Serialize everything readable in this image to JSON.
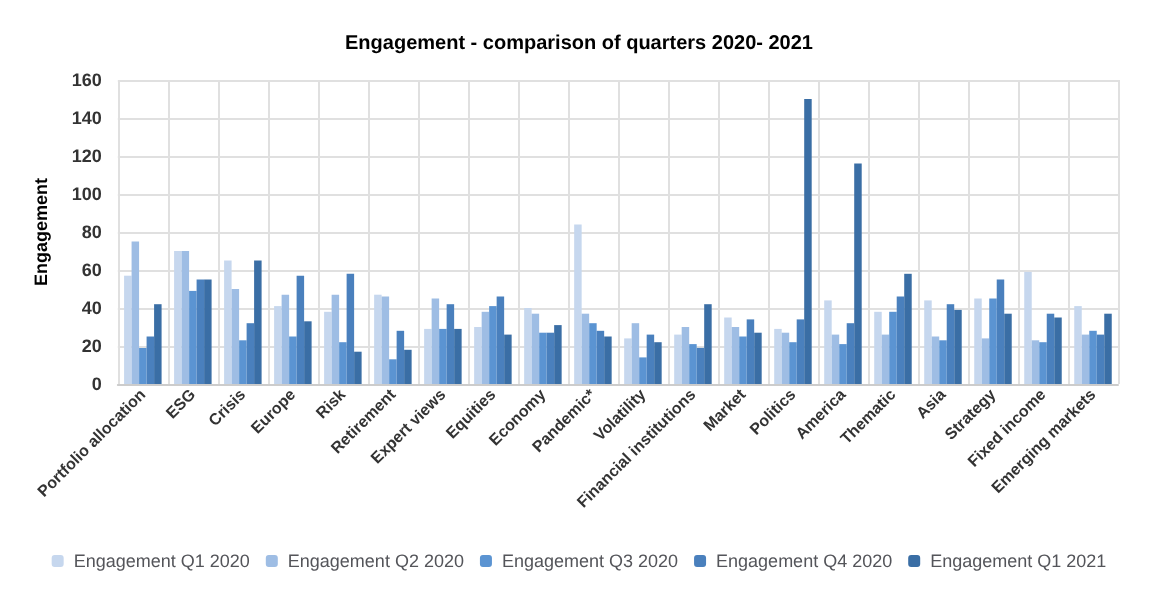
{
  "chart_data": {
    "type": "bar",
    "title": "Engagement - comparison of quarters 2020- 2021",
    "ylabel": "Engagement",
    "categories": [
      "Portfolio allocation",
      "ESG",
      "Crisis",
      "Europe",
      "Risk",
      "Retirement",
      "Expert views",
      "Equities",
      "Economy",
      "Pandemic*",
      "Volatility",
      "Financial institutions",
      "Market",
      "Politics",
      "America",
      "Thematic",
      "Asia",
      "Strategy",
      "Fixed income",
      "Emerging markets"
    ],
    "series": [
      {
        "name": "Engagement Q1 2020",
        "color": "#c6d7ee",
        "values": [
          57,
          70,
          65,
          41,
          38,
          47,
          29,
          30,
          40,
          84,
          24,
          26,
          35,
          29,
          44,
          38,
          44,
          45,
          59,
          41
        ]
      },
      {
        "name": "Engagement Q2 2020",
        "color": "#9ebde4",
        "values": [
          75,
          70,
          50,
          47,
          47,
          46,
          45,
          38,
          37,
          37,
          32,
          30,
          30,
          27,
          26,
          26,
          25,
          24,
          23,
          26
        ]
      },
      {
        "name": "Engagement Q3 2020",
        "color": "#5b94d2",
        "values": [
          19,
          49,
          23,
          25,
          22,
          13,
          29,
          41,
          27,
          32,
          14,
          21,
          25,
          22,
          21,
          38,
          23,
          45,
          22,
          28
        ]
      },
      {
        "name": "Engagement Q4 2020",
        "color": "#4a80bd",
        "values": [
          25,
          55,
          32,
          57,
          58,
          28,
          42,
          46,
          27,
          28,
          26,
          19,
          34,
          34,
          32,
          46,
          42,
          55,
          37,
          26
        ]
      },
      {
        "name": "Engagement Q1 2021",
        "color": "#3a6ea5",
        "values": [
          42,
          55,
          65,
          33,
          17,
          18,
          29,
          26,
          31,
          25,
          22,
          42,
          27,
          150,
          116,
          58,
          39,
          37,
          35,
          37
        ]
      }
    ],
    "ylim": [
      0,
      160
    ],
    "yticks": [
      0,
      20,
      40,
      60,
      80,
      100,
      120,
      140,
      160
    ],
    "grid": true,
    "legend": "bottom"
  }
}
